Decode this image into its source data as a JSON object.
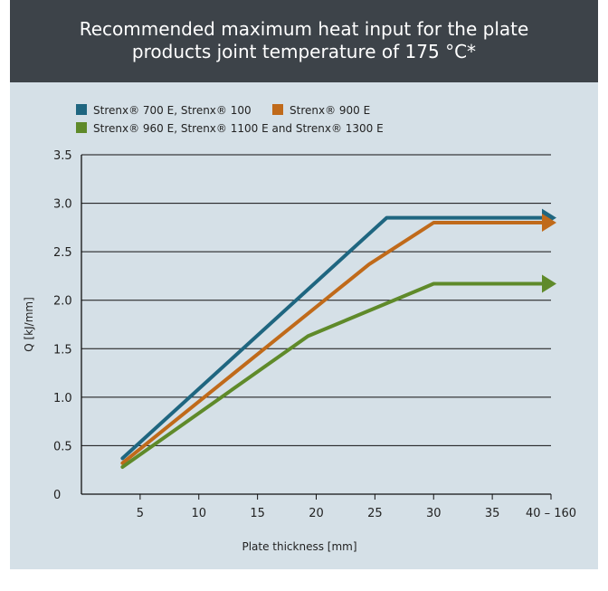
{
  "title_line1": "Recommended maximum heat input for the plate",
  "title_line2": "products joint temperature of 175 °C*",
  "chart_data": {
    "type": "line",
    "title": "Recommended maximum heat input for the plate products joint temperature of 175 °C*",
    "xlabel": "Plate thickness [mm]",
    "ylabel": "Q [kJ/mm]",
    "x_ticks": [
      "5",
      "10",
      "15",
      "20",
      "25",
      "30",
      "35",
      "40 – 160"
    ],
    "y_ticks": [
      "0",
      "0.5",
      "1.0",
      "1.5",
      "2.0",
      "2.5",
      "3.0",
      "3.5"
    ],
    "xlim": [
      0,
      40
    ],
    "ylim": [
      0,
      3.5
    ],
    "grid": "horizontal",
    "legend_position": "top-left",
    "series": [
      {
        "name": "Strenx® 700 E, Strenx® 100",
        "color": "#1f6680",
        "points": [
          [
            3.5,
            0.37
          ],
          [
            26,
            2.85
          ],
          [
            40,
            2.85
          ]
        ]
      },
      {
        "name": "Strenx® 900 E",
        "color": "#c06a1a",
        "points": [
          [
            3.5,
            0.32
          ],
          [
            24.5,
            2.37
          ],
          [
            30,
            2.8
          ],
          [
            40,
            2.8
          ]
        ]
      },
      {
        "name": "Strenx® 960 E, Strenx® 1100 E and Strenx® 1300 E",
        "color": "#5f8a2a",
        "points": [
          [
            3.5,
            0.28
          ],
          [
            19.3,
            1.63
          ],
          [
            30,
            2.17
          ],
          [
            40,
            2.17
          ]
        ]
      }
    ]
  }
}
